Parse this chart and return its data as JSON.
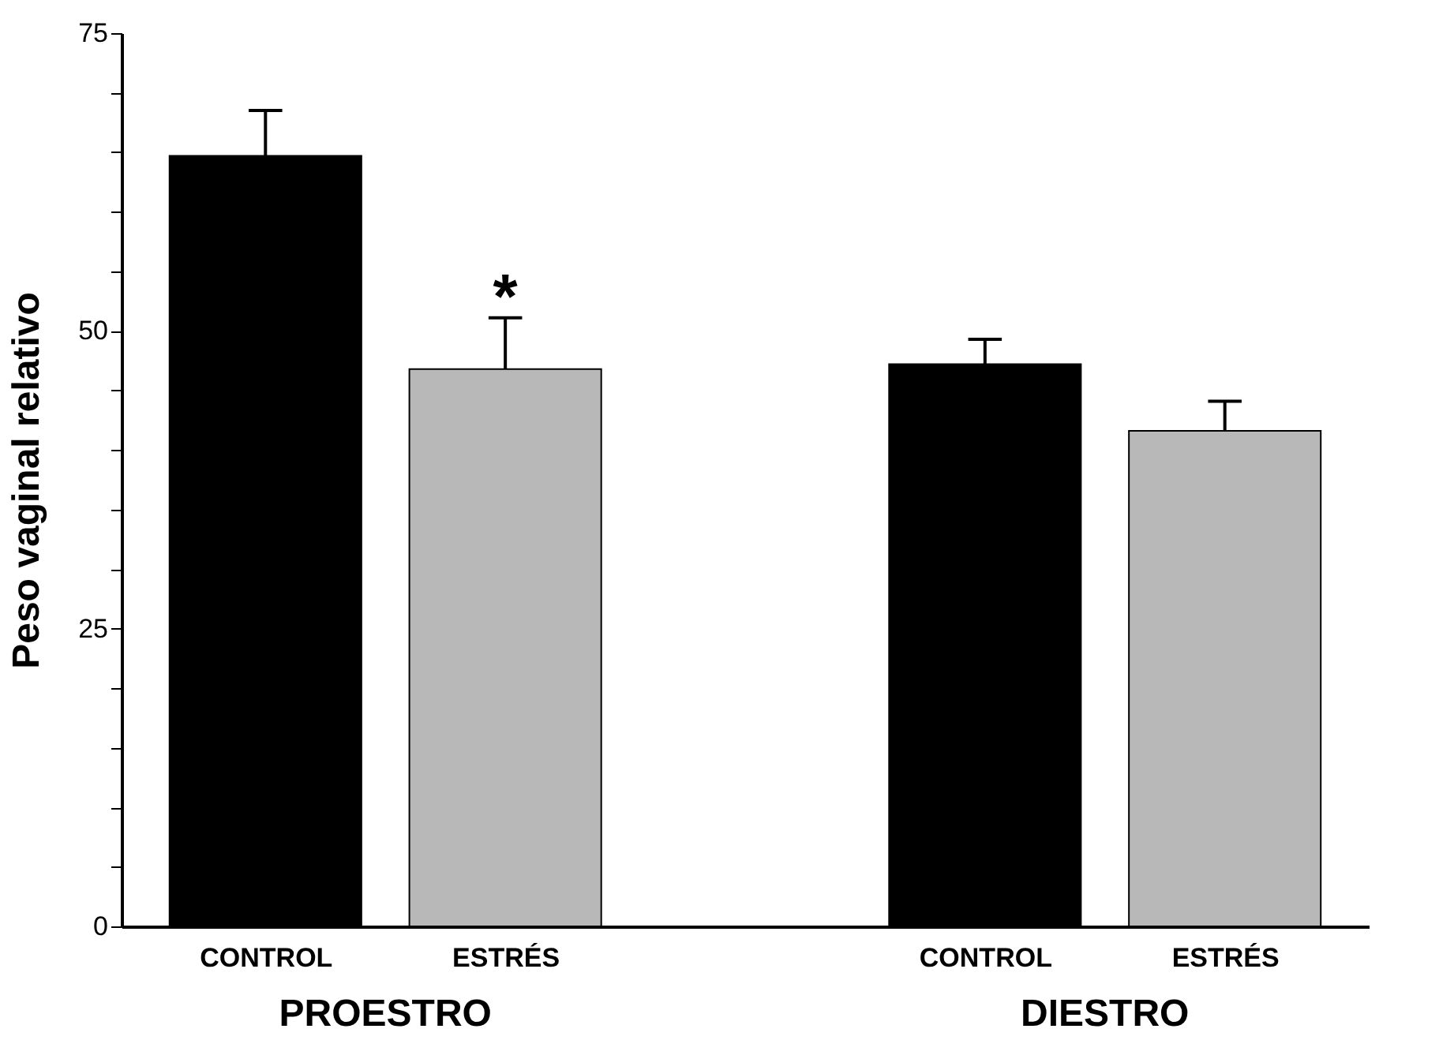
{
  "chart_data": {
    "type": "bar",
    "ylabel": "Peso vaginal relativo",
    "categories": [
      "CONTROL",
      "ESTRÉS",
      null,
      "CONTROL",
      "ESTRÉS"
    ],
    "values": [
      64.7,
      46.8,
      null,
      47.2,
      41.6
    ],
    "colors": [
      "#000000",
      "#b8b8b8",
      null,
      "#000000",
      "#b8b8b8"
    ],
    "errors": [
      [
        64.7,
        68.5
      ],
      [
        46.8,
        51.1
      ],
      null,
      [
        47.2,
        49.3
      ],
      [
        41.6,
        44.1
      ]
    ],
    "ylim": [
      0,
      75
    ],
    "yticks": [
      0,
      {
        "value": 5,
        "label": null
      },
      {
        "value": 10,
        "label": null
      },
      {
        "value": 15,
        "label": null
      },
      {
        "value": 20,
        "label": null
      },
      25,
      {
        "value": 30,
        "label": null
      },
      {
        "value": 35,
        "label": null
      },
      {
        "value": 40,
        "label": null
      },
      {
        "value": 45,
        "label": null
      },
      50,
      {
        "value": 55,
        "label": null
      },
      {
        "value": 60,
        "label": null
      },
      {
        "value": 65,
        "label": null
      },
      {
        "value": 70,
        "label": null
      },
      75
    ],
    "grid": false,
    "value_labels": [
      null,
      "*",
      null,
      null,
      null
    ],
    "annotations": [
      "PROESTRO",
      "DIESTRO"
    ]
  }
}
